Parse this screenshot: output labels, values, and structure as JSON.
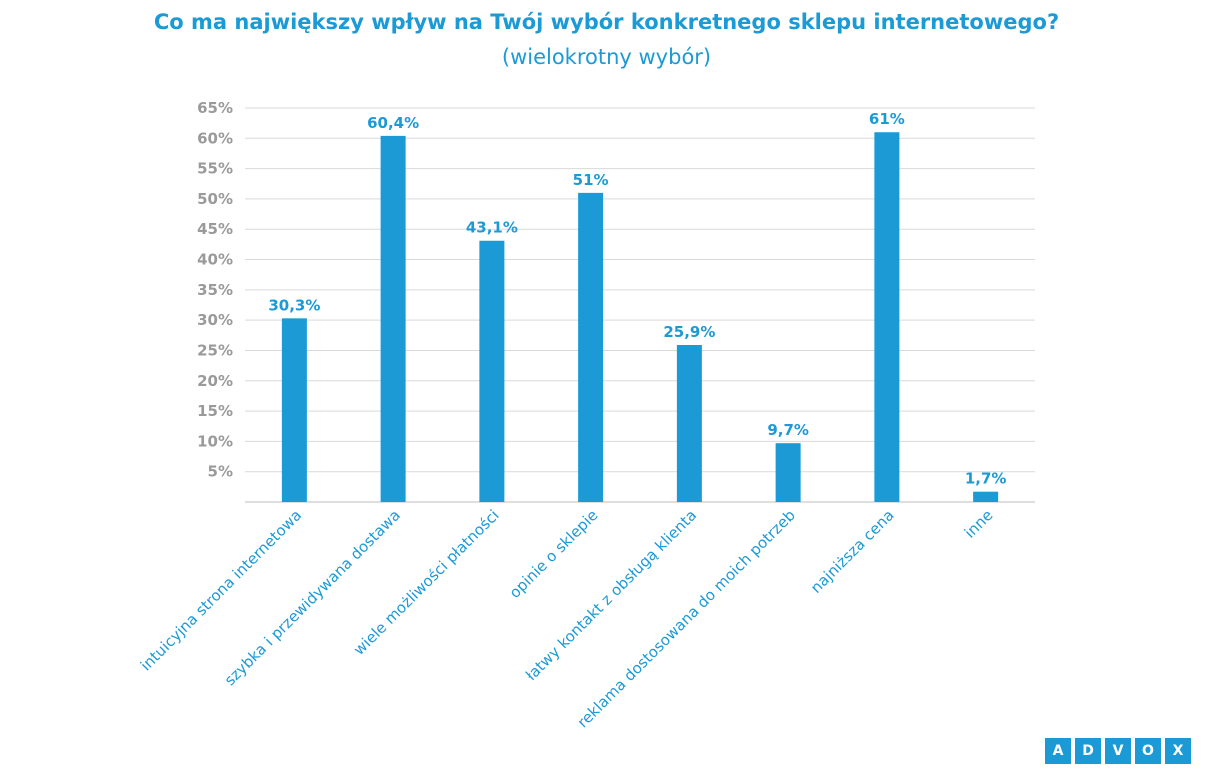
{
  "chart_data": {
    "type": "bar",
    "title": "Co ma największy wpływ na Twój wybór konkretnego sklepu internetowego?",
    "subtitle": "(wielokrotny wybór)",
    "categories": [
      "intuicyjna strona internetowa",
      "szybka i przewidywana dostawa",
      "wiele możliwości płatności",
      "opinie o sklepie",
      "łatwy kontakt z obsługą klienta",
      "reklama dostosowana do moich potrzeb",
      "najniższa cena",
      "inne"
    ],
    "values": [
      30.3,
      60.4,
      43.1,
      51,
      25.9,
      9.7,
      61,
      1.7
    ],
    "value_labels": [
      "30,3%",
      "60,4%",
      "43,1%",
      "51%",
      "25,9%",
      "9,7%",
      "61%",
      "1,7%"
    ],
    "yticks": [
      "5%",
      "10%",
      "15%",
      "20%",
      "25%",
      "30%",
      "35%",
      "40%",
      "45%",
      "50%",
      "55%",
      "60%",
      "65%"
    ],
    "ylim": [
      0,
      65
    ],
    "grid": true,
    "bar_color": "#1b9ad6"
  },
  "logo": {
    "letters": [
      "A",
      "D",
      "V",
      "O",
      "X"
    ],
    "text": "ADVOX"
  }
}
